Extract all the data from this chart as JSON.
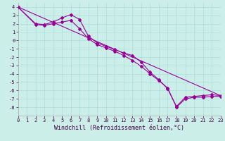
{
  "xlabel": "Windchill (Refroidissement éolien,°C)",
  "bg_color": "#cceee8",
  "grid_color": "#aaddda",
  "line_color": "#990099",
  "xlim": [
    0,
    23
  ],
  "ylim": [
    -9,
    4.5
  ],
  "xticks": [
    0,
    1,
    2,
    3,
    4,
    5,
    6,
    7,
    8,
    9,
    10,
    11,
    12,
    13,
    14,
    15,
    16,
    17,
    18,
    19,
    20,
    21,
    22,
    23
  ],
  "yticks": [
    -8,
    -7,
    -6,
    -5,
    -4,
    -3,
    -2,
    -1,
    0,
    1,
    2,
    3,
    4
  ],
  "line1_x": [
    0,
    2,
    3,
    4,
    5,
    6,
    7,
    8,
    9,
    10,
    11,
    12,
    13,
    14,
    15,
    16,
    17,
    18,
    19,
    20,
    21,
    22,
    23
  ],
  "line1_y": [
    4,
    2.0,
    1.9,
    2.2,
    2.7,
    3.1,
    2.5,
    0.5,
    -0.3,
    -0.7,
    -1.1,
    -1.5,
    -1.8,
    -2.6,
    -3.8,
    -4.7,
    -5.8,
    -7.9,
    -6.8,
    -6.7,
    -6.6,
    -6.5,
    -6.6
  ],
  "line2_x": [
    0,
    2,
    3,
    4,
    5,
    6,
    7,
    8,
    9,
    10,
    11,
    12,
    13,
    14,
    15,
    16,
    17,
    18,
    19,
    20,
    21,
    22,
    23
  ],
  "line2_y": [
    4,
    1.9,
    1.8,
    2.0,
    2.2,
    2.4,
    1.4,
    0.2,
    -0.5,
    -0.9,
    -1.3,
    -1.8,
    -2.4,
    -3.1,
    -4.0,
    -4.8,
    -5.7,
    -8.0,
    -7.0,
    -6.8,
    -6.8,
    -6.7,
    -6.7
  ],
  "line3_x": [
    0,
    23
  ],
  "line3_y": [
    4,
    -6.6
  ],
  "marker_style": "D",
  "marker_size": 2.0,
  "line_width": 0.8,
  "tick_fontsize": 5.0,
  "label_fontsize": 6.0
}
